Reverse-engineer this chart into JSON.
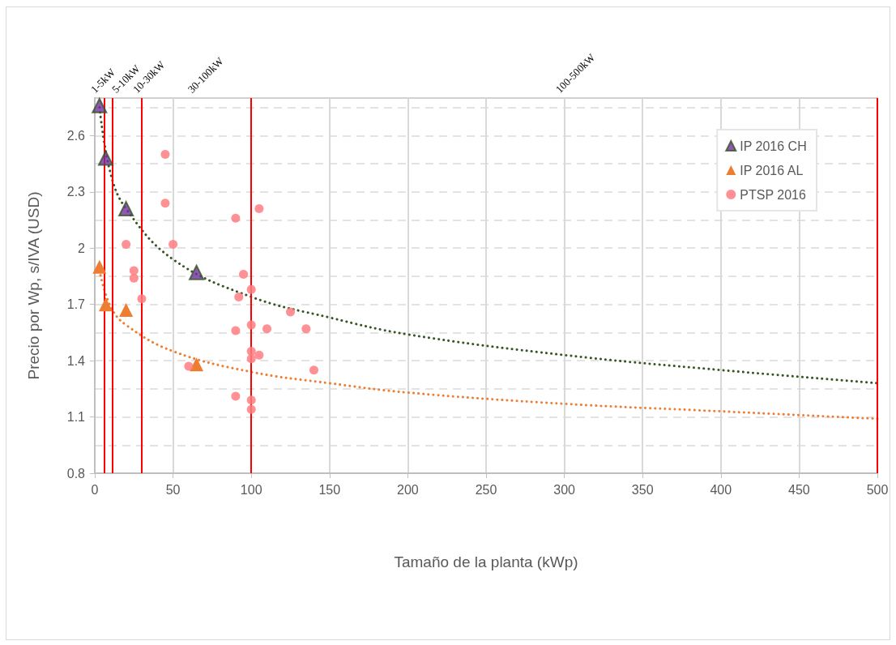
{
  "chart_data": {
    "type": "scatter",
    "xlabel": "Tamaño de la planta (kWp)",
    "ylabel": "Precio por Wp, s/IVA (USD)",
    "xlim": [
      0,
      500
    ],
    "xticks": [
      0,
      50,
      100,
      150,
      200,
      250,
      300,
      350,
      400,
      450,
      500
    ],
    "ylim": [
      0.8,
      2.8
    ],
    "yticks": [
      0.8,
      1.1,
      1.4,
      1.7,
      2,
      2.3,
      2.6
    ],
    "grid": true,
    "legend": "top right",
    "series": [
      {
        "name": "IP 2016 CH",
        "marker": "triangle",
        "color": "#7030a0",
        "x": [
          3,
          7,
          20,
          65
        ],
        "values": [
          2.76,
          2.48,
          2.21,
          1.87
        ]
      },
      {
        "name": "IP 2016 AL",
        "marker": "triangle",
        "color": "#ed7d31",
        "x": [
          3,
          7,
          20,
          65
        ],
        "values": [
          1.9,
          1.7,
          1.67,
          1.38
        ]
      },
      {
        "name": "PTSP 2016",
        "marker": "circle",
        "color": "#ff7c80",
        "x": [
          45,
          45,
          105,
          90,
          20,
          50,
          25,
          25,
          95,
          30,
          92,
          100,
          125,
          100,
          90,
          110,
          135,
          140,
          100,
          100,
          105,
          60,
          90,
          100,
          100
        ],
        "values": [
          2.5,
          2.24,
          2.21,
          2.16,
          2.02,
          2.02,
          1.88,
          1.84,
          1.86,
          1.73,
          1.74,
          1.78,
          1.66,
          1.59,
          1.56,
          1.57,
          1.57,
          1.35,
          1.45,
          1.41,
          1.43,
          1.37,
          1.21,
          1.19,
          1.14
        ]
      },
      {
        "type": "line",
        "line_style": "dotted",
        "marker": "none",
        "color": "#375623",
        "x": [
          3,
          10,
          20,
          50,
          100,
          150,
          200,
          300,
          400,
          500
        ],
        "values": [
          2.75,
          2.4,
          2.21,
          1.94,
          1.74,
          1.63,
          1.54,
          1.43,
          1.35,
          1.28
        ]
      },
      {
        "type": "line",
        "line_style": "dotted",
        "marker": "none",
        "color": "#ed7d31",
        "x": [
          3,
          10,
          20,
          50,
          100,
          150,
          200,
          300,
          400,
          500
        ],
        "values": [
          1.88,
          1.69,
          1.59,
          1.45,
          1.34,
          1.28,
          1.23,
          1.17,
          1.13,
          1.09
        ]
      }
    ],
    "ref_lines": [
      {
        "axis": "x",
        "value": 6,
        "color": "#ff0000"
      },
      {
        "axis": "x",
        "value": 11,
        "color": "#ff0000"
      },
      {
        "axis": "x",
        "value": 30,
        "color": "#ff0000"
      },
      {
        "axis": "x",
        "value": 100,
        "color": "#ff0000"
      },
      {
        "axis": "x",
        "value": 500,
        "color": "#ff0000"
      }
    ],
    "annotations": [
      "1-5kW",
      "5-10kW",
      "10-30kW",
      "30-100kW",
      "100-500kW"
    ]
  }
}
